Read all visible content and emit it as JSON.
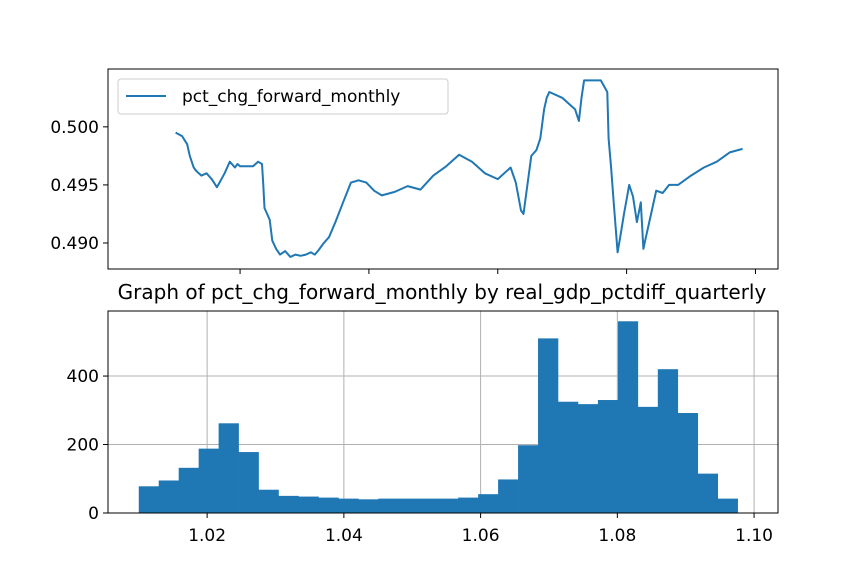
{
  "chart_data": [
    {
      "type": "line",
      "title": "",
      "xlabel": "",
      "ylabel": "",
      "xlim": [
        0.9995,
        1.1035
      ],
      "ylim": [
        0.48776,
        0.50498
      ],
      "xticks": [
        1.02,
        1.04,
        1.06,
        1.08,
        1.1
      ],
      "yticks": [
        0.49,
        0.495,
        0.5
      ],
      "ytick_labels": [
        "0.490",
        "0.495",
        "0.500"
      ],
      "grid": false,
      "legend_position": "upper-left",
      "series": [
        {
          "name": "pct_chg_forward_monthly",
          "color": "#1f77b4",
          "x": [
            1.01,
            1.011,
            1.0118,
            1.0122,
            1.0128,
            1.0132,
            1.014,
            1.0148,
            1.0156,
            1.0164,
            1.0168,
            1.0176,
            1.0184,
            1.0192,
            1.0196,
            1.02,
            1.021,
            1.022,
            1.0228,
            1.0234,
            1.0236,
            1.0238,
            1.0242,
            1.0246,
            1.025,
            1.0256,
            1.0262,
            1.027,
            1.0278,
            1.0286,
            1.0294,
            1.0302,
            1.031,
            1.0316,
            1.0322,
            1.033,
            1.0338,
            1.0348,
            1.036,
            1.0372,
            1.0384,
            1.0396,
            1.0408,
            1.042,
            1.044,
            1.046,
            1.048,
            1.05,
            1.052,
            1.054,
            1.056,
            1.058,
            1.06,
            1.062,
            1.0628,
            1.0636,
            1.064,
            1.0646,
            1.0652,
            1.066,
            1.0666,
            1.0672,
            1.0676,
            1.068,
            1.07,
            1.072,
            1.0726,
            1.073,
            1.0734,
            1.074,
            1.076,
            1.077,
            1.0772,
            1.0776,
            1.078,
            1.0786,
            1.079,
            1.0796,
            1.0804,
            1.081,
            1.0816,
            1.0822,
            1.0826,
            1.083,
            1.0838,
            1.0846,
            1.0856,
            1.0866,
            1.088,
            1.09,
            1.092,
            1.094,
            1.096,
            1.098
          ],
          "y": [
            0.4995,
            0.4992,
            0.4985,
            0.4975,
            0.4965,
            0.4962,
            0.4958,
            0.496,
            0.4955,
            0.4948,
            0.4952,
            0.496,
            0.497,
            0.4965,
            0.4968,
            0.4966,
            0.4966,
            0.4966,
            0.497,
            0.4968,
            0.495,
            0.493,
            0.4925,
            0.492,
            0.4902,
            0.4895,
            0.489,
            0.4893,
            0.4888,
            0.489,
            0.4889,
            0.489,
            0.4892,
            0.489,
            0.4894,
            0.49,
            0.4905,
            0.4918,
            0.4935,
            0.4952,
            0.4954,
            0.4952,
            0.4945,
            0.4941,
            0.4944,
            0.4949,
            0.4946,
            0.4958,
            0.4966,
            0.4976,
            0.497,
            0.496,
            0.4955,
            0.4965,
            0.4952,
            0.4928,
            0.4925,
            0.495,
            0.4975,
            0.498,
            0.499,
            0.5015,
            0.5025,
            0.503,
            0.5025,
            0.5015,
            0.5005,
            0.5025,
            0.504,
            0.504,
            0.504,
            0.503,
            0.499,
            0.4965,
            0.4935,
            0.4892,
            0.4905,
            0.4925,
            0.495,
            0.494,
            0.4918,
            0.4935,
            0.4895,
            0.4905,
            0.4925,
            0.4945,
            0.4943,
            0.495,
            0.495,
            0.4958,
            0.4965,
            0.497,
            0.4978,
            0.4981
          ]
        }
      ]
    },
    {
      "type": "bar",
      "title": "Graph of pct_chg_forward_monthly by real_gdp_pctdiff_quarterly",
      "xlabel": "",
      "ylabel": "",
      "xlim": [
        1.0055,
        1.1035
      ],
      "ylim": [
        0,
        590
      ],
      "xticks": [
        1.02,
        1.04,
        1.06,
        1.08,
        1.1
      ],
      "xtick_labels": [
        "1.02",
        "1.04",
        "1.06",
        "1.08",
        "1.10"
      ],
      "yticks": [
        0,
        200,
        400
      ],
      "ytick_labels": [
        "0",
        "200",
        "400"
      ],
      "grid": true,
      "color": "#1f77b4",
      "bin_edges": [
        1.01,
        1.01292,
        1.01584,
        1.01876,
        1.02168,
        1.0246,
        1.02752,
        1.03044,
        1.03336,
        1.03628,
        1.0392,
        1.04212,
        1.04504,
        1.04796,
        1.05088,
        1.0538,
        1.05672,
        1.05964,
        1.06256,
        1.06548,
        1.0684,
        1.07132,
        1.07424,
        1.07716,
        1.08008,
        1.083,
        1.08592,
        1.08884,
        1.09176,
        1.09468,
        1.0976
      ],
      "values": [
        78,
        95,
        132,
        188,
        262,
        178,
        68,
        50,
        48,
        45,
        42,
        40,
        42,
        42,
        42,
        42,
        45,
        55,
        98,
        198,
        510,
        325,
        318,
        330,
        560,
        310,
        420,
        292,
        115,
        42,
        36
      ]
    }
  ]
}
